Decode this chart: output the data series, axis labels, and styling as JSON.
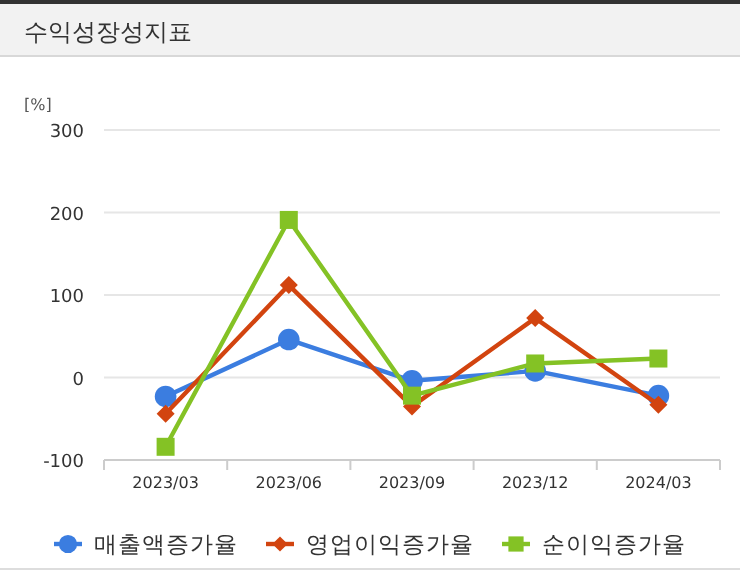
{
  "chart_data": {
    "type": "line",
    "title": "수익성장성지표",
    "ylabel": "[%]",
    "categories": [
      "2023/03",
      "2023/06",
      "2023/09",
      "2023/12",
      "2024/03"
    ],
    "series": [
      {
        "name": "매출액증가율",
        "color": "#3b7de0",
        "marker": "circle",
        "values": [
          -23,
          46,
          -4,
          8,
          -22
        ]
      },
      {
        "name": "영업이익증가율",
        "color": "#d2440f",
        "marker": "diamond",
        "values": [
          -44,
          112,
          -35,
          72,
          -33
        ]
      },
      {
        "name": "순이익증가율",
        "color": "#84c225",
        "marker": "square",
        "values": [
          -84,
          191,
          -22,
          17,
          23
        ]
      }
    ],
    "ylim": [
      -100,
      300
    ],
    "yticks": [
      -100,
      0,
      100,
      200,
      300
    ],
    "grid": "y",
    "legend": "bottom"
  }
}
